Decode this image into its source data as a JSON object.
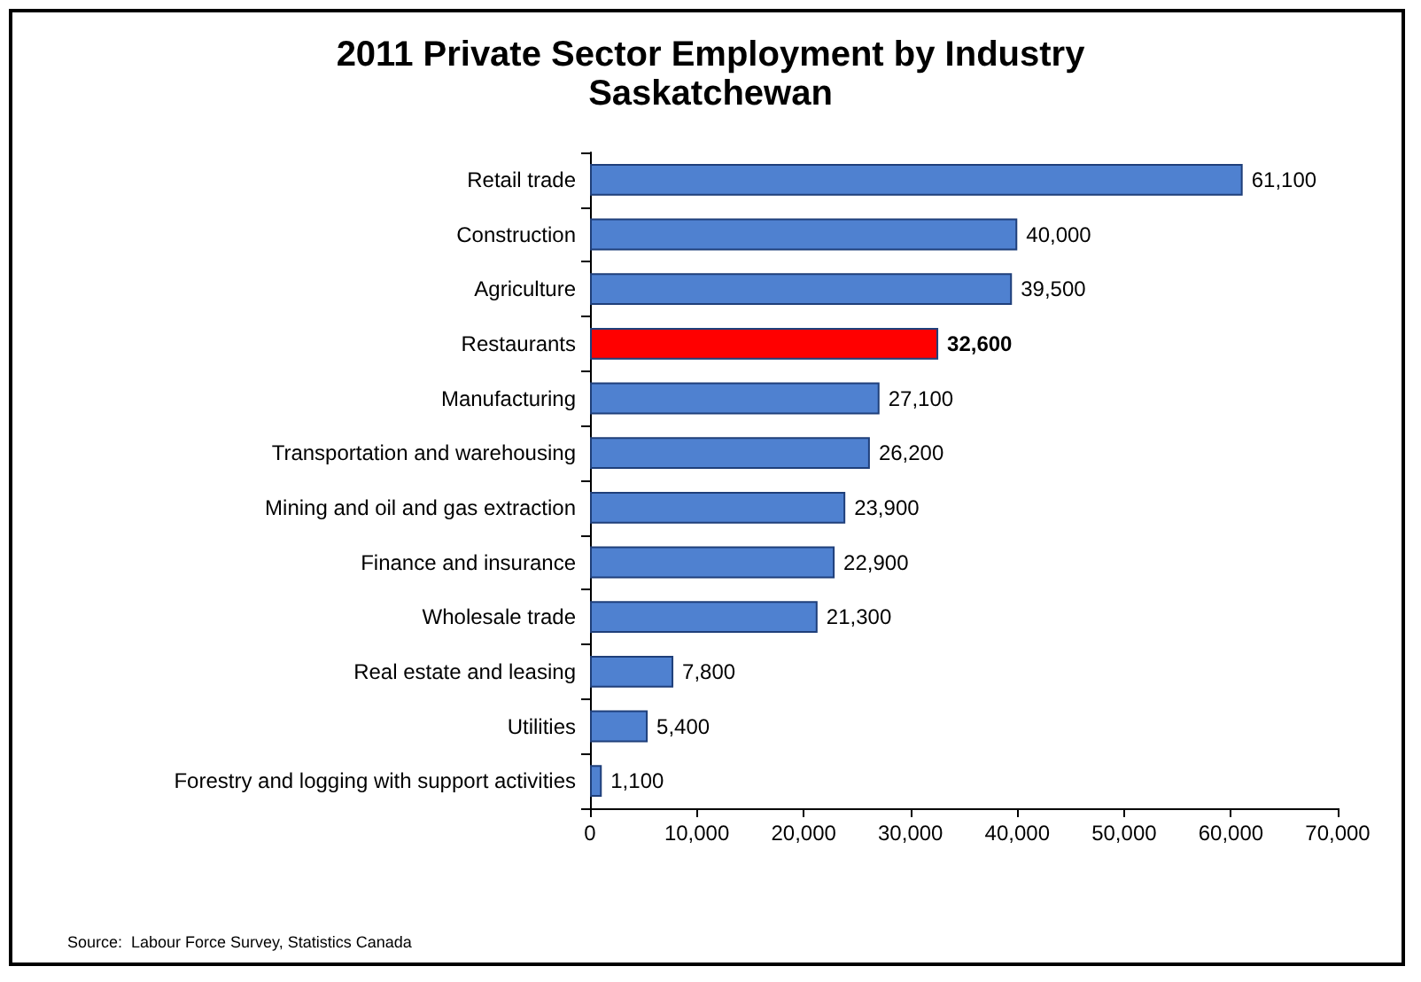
{
  "chart_data": {
    "type": "bar",
    "orientation": "horizontal",
    "title": "2011 Private Sector Employment by Industry",
    "subtitle": "Saskatchewan",
    "categories": [
      "Retail trade",
      "Construction",
      "Agriculture",
      "Restaurants",
      "Manufacturing",
      "Transportation and warehousing",
      "Mining and oil and gas extraction",
      "Finance and insurance",
      "Wholesale trade",
      "Real estate and leasing",
      "Utilities",
      "Forestry and logging with support activities"
    ],
    "values": [
      61100,
      40000,
      39500,
      32600,
      27100,
      26200,
      23900,
      22900,
      21300,
      7800,
      5400,
      1100
    ],
    "value_labels": [
      "61,100",
      "40,000",
      "39,500",
      "32,600",
      "27,100",
      "26,200",
      "23,900",
      "22,900",
      "21,300",
      "7,800",
      "5,400",
      "1,100"
    ],
    "colors": [
      "#4f81d0",
      "#4f81d0",
      "#4f81d0",
      "#ff0000",
      "#4f81d0",
      "#4f81d0",
      "#4f81d0",
      "#4f81d0",
      "#4f81d0",
      "#4f81d0",
      "#4f81d0",
      "#4f81d0"
    ],
    "xlim": [
      0,
      70000
    ],
    "xticks": [
      0,
      {
        "value": 10000,
        "label": "10,000"
      },
      {
        "value": 20000,
        "label": "20,000"
      },
      {
        "value": 30000,
        "label": "30,000"
      },
      {
        "value": 40000,
        "label": "40,000"
      },
      {
        "value": 50000,
        "label": "50,000"
      },
      {
        "value": 60000,
        "label": "60,000"
      },
      {
        "value": 70000,
        "label": "70,000"
      }
    ],
    "grid": false,
    "annotations": [
      "Source:  Labour Force Survey, Statistics Canada"
    ]
  }
}
